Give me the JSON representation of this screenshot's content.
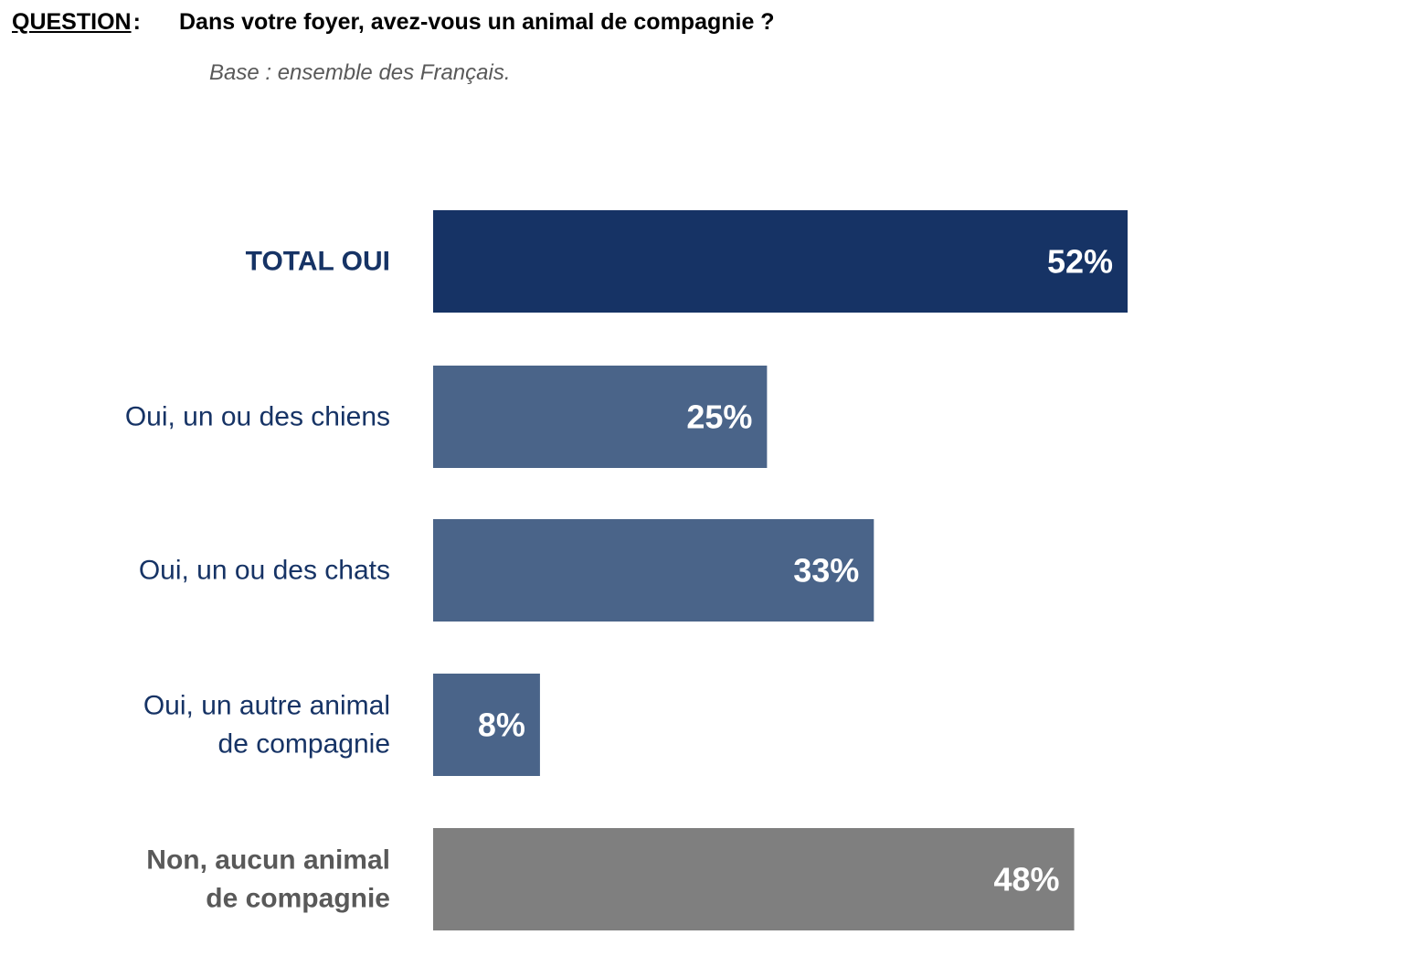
{
  "header": {
    "question_label": "QUESTION",
    "question_colon": ":",
    "question_text": "Dans votre foyer, avez-vous un animal de compagnie ?",
    "base_note": "Base : ensemble des Français."
  },
  "chart_data": {
    "type": "bar",
    "orientation": "horizontal",
    "categories": [
      "TOTAL OUI",
      "Oui, un ou des chiens",
      "Oui, un ou des chats",
      "Oui, un autre animal de compagnie",
      "Non, aucun animal de compagnie"
    ],
    "category_lines": [
      [
        "TOTAL OUI"
      ],
      [
        "Oui, un ou des chiens"
      ],
      [
        "Oui, un ou des chats"
      ],
      [
        "Oui, un autre animal",
        "de compagnie"
      ],
      [
        "Non, aucun animal",
        "de compagnie"
      ]
    ],
    "values": [
      52,
      25,
      33,
      8,
      48
    ],
    "value_labels": [
      "52%",
      "25%",
      "33%",
      "8%",
      "48%"
    ],
    "unit": "%",
    "bar_colors": [
      "#163365",
      "#4a6489",
      "#4a6489",
      "#4a6489",
      "#7f7f7f"
    ],
    "label_colors": [
      "#163365",
      "#163365",
      "#163365",
      "#163365",
      "#595959"
    ],
    "label_bold": [
      true,
      false,
      false,
      false,
      true
    ],
    "axis_visible": false,
    "grid": false,
    "legend": "none"
  }
}
